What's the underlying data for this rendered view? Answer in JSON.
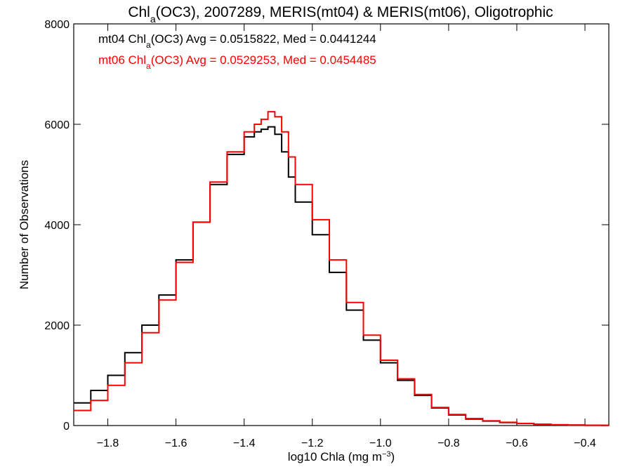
{
  "chart_data": {
    "type": "line",
    "step": true,
    "title": {
      "pre": "Chl",
      "sub": "a",
      "post": "(OC3), 2007289, MERIS(mt04) & MERIS(mt06), Oligotrophic"
    },
    "xlabel": {
      "pre": "log10 Chla (mg m",
      "sup": "−3",
      "post": ")"
    },
    "ylabel": "Number of Observations",
    "xlim": [
      -1.9,
      -0.33
    ],
    "ylim": [
      0,
      8000
    ],
    "xticks": [
      -1.8,
      -1.6,
      -1.4,
      -1.2,
      -1.0,
      -0.8,
      -0.6,
      -0.4
    ],
    "xtick_labels": [
      "−1.8",
      "−1.6",
      "−1.4",
      "−1.2",
      "−1.0",
      "−0.8",
      "−0.6",
      "−0.4"
    ],
    "yticks": [
      0,
      2000,
      4000,
      6000,
      8000
    ],
    "ytick_labels": [
      "0",
      "2000",
      "4000",
      "6000",
      "8000"
    ],
    "grid": false,
    "legend_placement": "top-left",
    "series": [
      {
        "name": "mt04",
        "color": "#000000",
        "legend": {
          "pre": "mt04 Chl",
          "sub": "a",
          "post": "(OC3) Avg = 0.0515822, Med = 0.0441244"
        },
        "x": [
          -1.9,
          -1.85,
          -1.8,
          -1.75,
          -1.7,
          -1.65,
          -1.6,
          -1.55,
          -1.5,
          -1.45,
          -1.4,
          -1.37,
          -1.35,
          -1.33,
          -1.31,
          -1.29,
          -1.27,
          -1.25,
          -1.2,
          -1.15,
          -1.1,
          -1.05,
          -1.0,
          -0.95,
          -0.9,
          -0.85,
          -0.8,
          -0.75,
          -0.7,
          -0.65,
          -0.6,
          -0.55,
          -0.5,
          -0.45,
          -0.4,
          -0.35,
          -0.33
        ],
        "y": [
          450,
          700,
          1000,
          1450,
          2000,
          2600,
          3300,
          4050,
          4800,
          5400,
          5750,
          5850,
          5900,
          5950,
          5800,
          5450,
          4950,
          4450,
          3800,
          3050,
          2300,
          1700,
          1250,
          900,
          600,
          350,
          210,
          130,
          90,
          60,
          40,
          25,
          15,
          10,
          5,
          3,
          2
        ]
      },
      {
        "name": "mt06",
        "color": "#ff0000",
        "legend": {
          "pre": "mt06 Chl",
          "sub": "a",
          "post": "(OC3) Avg = 0.0529253, Med = 0.0454485"
        },
        "x": [
          -1.9,
          -1.85,
          -1.8,
          -1.75,
          -1.7,
          -1.65,
          -1.6,
          -1.55,
          -1.5,
          -1.45,
          -1.4,
          -1.37,
          -1.35,
          -1.33,
          -1.31,
          -1.29,
          -1.27,
          -1.25,
          -1.2,
          -1.15,
          -1.1,
          -1.05,
          -1.0,
          -0.95,
          -0.9,
          -0.85,
          -0.8,
          -0.75,
          -0.7,
          -0.65,
          -0.6,
          -0.55,
          -0.5,
          -0.45,
          -0.4,
          -0.35,
          -0.33
        ],
        "y": [
          300,
          500,
          800,
          1250,
          1850,
          2500,
          3250,
          4050,
          4850,
          5450,
          5850,
          6000,
          6100,
          6250,
          6150,
          5850,
          5350,
          4800,
          4100,
          3300,
          2450,
          1800,
          1300,
          930,
          620,
          360,
          220,
          140,
          95,
          65,
          42,
          26,
          16,
          10,
          6,
          3,
          2
        ]
      }
    ]
  }
}
